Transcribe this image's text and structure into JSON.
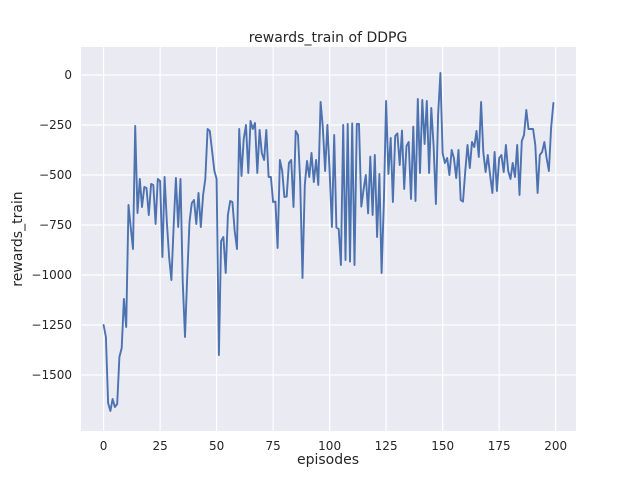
{
  "figure": {
    "title": "rewards_train of DDPG",
    "xlabel": "episodes",
    "ylabel": "rewards_train"
  },
  "colors": {
    "line": "#4c72b0",
    "plot_background": "#eaeaf2",
    "grid": "#ffffff",
    "text": "#262626",
    "figure_background": "#ffffff"
  },
  "chart_data": {
    "type": "line",
    "title": "rewards_train of DDPG",
    "xlabel": "episodes",
    "ylabel": "rewards_train",
    "legend": false,
    "grid": true,
    "xlim": [
      -10,
      209
    ],
    "ylim": [
      -1780,
      140
    ],
    "x_ticks": [
      0,
      25,
      50,
      75,
      100,
      125,
      150,
      175,
      200
    ],
    "x_tick_labels": [
      "0",
      "25",
      "50",
      "75",
      "100",
      "125",
      "150",
      "175",
      "200"
    ],
    "y_ticks": [
      0,
      -250,
      -500,
      -750,
      -1000,
      -1250,
      -1500
    ],
    "y_tick_labels": [
      "0",
      "−250",
      "−500",
      "−750",
      "−1000",
      "−1250",
      "−1500"
    ],
    "series": [
      {
        "name": "rewards_train",
        "x_start": 0,
        "x_step": 1,
        "values": [
          -1250,
          -1310,
          -1640,
          -1680,
          -1620,
          -1660,
          -1645,
          -1410,
          -1365,
          -1120,
          -1260,
          -650,
          -760,
          -870,
          -255,
          -690,
          -520,
          -660,
          -560,
          -565,
          -700,
          -545,
          -550,
          -745,
          -520,
          -530,
          -910,
          -510,
          -740,
          -915,
          -1025,
          -750,
          -515,
          -760,
          -520,
          -1030,
          -1310,
          -1010,
          -735,
          -640,
          -625,
          -745,
          -590,
          -760,
          -600,
          -520,
          -270,
          -280,
          -380,
          -480,
          -520,
          -1400,
          -830,
          -810,
          -990,
          -700,
          -630,
          -635,
          -780,
          -870,
          -270,
          -505,
          -320,
          -250,
          -490,
          -230,
          -270,
          -240,
          -490,
          -275,
          -390,
          -425,
          -275,
          -510,
          -510,
          -635,
          -633,
          -865,
          -425,
          -480,
          -610,
          -608,
          -440,
          -425,
          -660,
          -280,
          -300,
          -535,
          -1015,
          -550,
          -430,
          -510,
          -390,
          -535,
          -425,
          -550,
          -135,
          -260,
          -480,
          -250,
          -480,
          -760,
          -300,
          -763,
          -770,
          -950,
          -250,
          -925,
          -245,
          -933,
          -242,
          -950,
          -245,
          -245,
          -658,
          -575,
          -500,
          -692,
          -408,
          -700,
          -400,
          -810,
          -495,
          -990,
          -630,
          -130,
          -495,
          -315,
          -635,
          -305,
          -292,
          -450,
          -278,
          -570,
          -355,
          -335,
          -620,
          -258,
          -630,
          -120,
          -490,
          -125,
          -345,
          -130,
          -490,
          -165,
          -355,
          -645,
          -200,
          10,
          -390,
          -440,
          -415,
          -500,
          -375,
          -415,
          -515,
          -375,
          -625,
          -633,
          -485,
          -350,
          -465,
          -335,
          -360,
          -280,
          -410,
          -135,
          -385,
          -485,
          -400,
          -500,
          -590,
          -385,
          -580,
          -415,
          -400,
          -485,
          -350,
          -480,
          -520,
          -440,
          -510,
          -350,
          -600,
          -330,
          -300,
          -175,
          -270,
          -270,
          -270,
          -350,
          -590,
          -400,
          -385,
          -335,
          -415,
          -480,
          -265,
          -140
        ]
      }
    ]
  }
}
